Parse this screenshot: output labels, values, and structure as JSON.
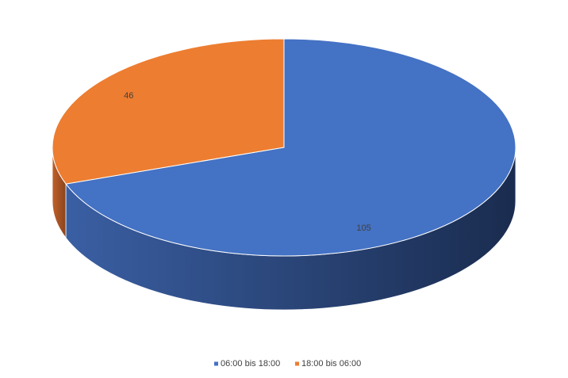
{
  "chart_data": {
    "type": "pie",
    "categories": [
      "06:00 bis 18:00",
      "18:00 bis 06:00"
    ],
    "values": [
      105,
      46
    ],
    "colors": [
      "#4472c4",
      "#ed7d31"
    ],
    "legend": "bottom"
  }
}
